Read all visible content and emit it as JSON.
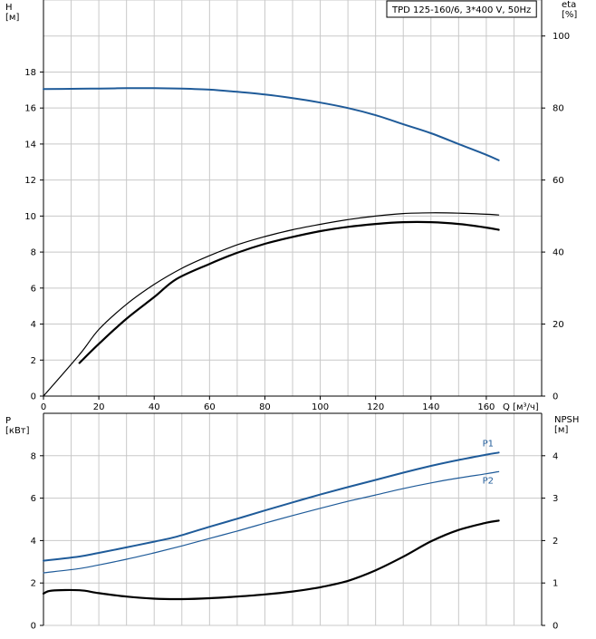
{
  "chart_data": [
    {
      "type": "line",
      "title": "TPD 125-160/6, 3*400 V, 50Hz",
      "xlabel": "Q [м³/ч]",
      "ylabel": "H\n[м]",
      "y2label": "eta\n[%]",
      "xlim": [
        0,
        180
      ],
      "ylim": [
        0,
        22
      ],
      "y2lim": [
        0,
        110
      ],
      "x_ticks": [
        0,
        20,
        40,
        60,
        80,
        100,
        120,
        140,
        160
      ],
      "y_ticks": [
        0,
        2,
        4,
        6,
        8,
        10,
        12,
        14,
        16,
        18
      ],
      "y2_ticks": [
        0,
        20,
        40,
        60,
        80,
        100
      ],
      "grid": true,
      "series": [
        {
          "axis": "left",
          "color": "#1f5b99",
          "width": 2,
          "x": [
            0,
            13,
            20,
            30,
            40,
            50,
            60,
            70,
            80,
            90,
            100,
            110,
            120,
            130,
            140,
            150,
            160,
            164.5
          ],
          "values": [
            17.05,
            17.07,
            17.08,
            17.1,
            17.1,
            17.08,
            17.02,
            16.9,
            16.75,
            16.55,
            16.3,
            16.0,
            15.6,
            15.1,
            14.6,
            14.0,
            13.4,
            13.1
          ]
        },
        {
          "axis": "right",
          "color": "#000000",
          "width": 1.2,
          "x": [
            0,
            13,
            20,
            30,
            40,
            50,
            60,
            70,
            80,
            90,
            100,
            110,
            120,
            130,
            140,
            150,
            160,
            164.5
          ],
          "values": [
            0,
            11.5,
            18.5,
            25.5,
            31,
            35.5,
            39,
            42,
            44.3,
            46.2,
            47.7,
            49,
            50,
            50.7,
            50.9,
            50.8,
            50.5,
            50.3
          ]
        },
        {
          "axis": "right",
          "color": "#000000",
          "width": 2.2,
          "x": [
            13,
            20,
            30,
            40,
            48,
            60,
            70,
            80,
            90,
            100,
            110,
            120,
            130,
            140,
            150,
            160,
            164.5
          ],
          "values": [
            9.2,
            14.5,
            21.5,
            27.5,
            32.5,
            36.7,
            39.8,
            42.3,
            44.2,
            45.8,
            47.0,
            47.8,
            48.3,
            48.3,
            47.8,
            46.8,
            46.2
          ]
        }
      ]
    },
    {
      "type": "line",
      "title": "",
      "xlabel": "",
      "ylabel": "P\n[кВт]",
      "y2label": "NPSH\n[м]",
      "xlim": [
        0,
        180
      ],
      "ylim": [
        0,
        10
      ],
      "y2lim": [
        0,
        5
      ],
      "y_ticks": [
        0,
        2,
        4,
        6,
        8
      ],
      "y2_ticks": [
        0,
        1,
        2,
        3,
        4
      ],
      "grid": true,
      "series": [
        {
          "name": "P1",
          "axis": "left",
          "color": "#1f5b99",
          "width": 2,
          "x": [
            0,
            13,
            20,
            30,
            40,
            48,
            60,
            70,
            80,
            90,
            100,
            110,
            120,
            130,
            140,
            150,
            160,
            164.5
          ],
          "values": [
            3.05,
            3.25,
            3.42,
            3.68,
            3.95,
            4.18,
            4.65,
            5.03,
            5.42,
            5.8,
            6.17,
            6.52,
            6.86,
            7.2,
            7.52,
            7.8,
            8.05,
            8.15
          ]
        },
        {
          "name": "P2",
          "axis": "left",
          "color": "#1f5b99",
          "width": 1.2,
          "x": [
            0,
            13,
            20,
            30,
            40,
            50,
            60,
            70,
            80,
            90,
            100,
            110,
            120,
            130,
            140,
            150,
            160,
            164.5
          ],
          "values": [
            2.48,
            2.68,
            2.85,
            3.12,
            3.42,
            3.75,
            4.1,
            4.45,
            4.82,
            5.18,
            5.52,
            5.85,
            6.15,
            6.45,
            6.72,
            6.95,
            7.15,
            7.25
          ]
        },
        {
          "axis": "right",
          "color": "#000000",
          "width": 2.2,
          "x": [
            0,
            3,
            13,
            20,
            30,
            40,
            50,
            60,
            70,
            80,
            90,
            100,
            110,
            120,
            130,
            140,
            150,
            160,
            164.5
          ],
          "values": [
            0.75,
            0.82,
            0.83,
            0.76,
            0.68,
            0.63,
            0.62,
            0.64,
            0.68,
            0.73,
            0.8,
            0.9,
            1.05,
            1.3,
            1.62,
            1.98,
            2.25,
            2.42,
            2.47
          ]
        }
      ]
    }
  ]
}
